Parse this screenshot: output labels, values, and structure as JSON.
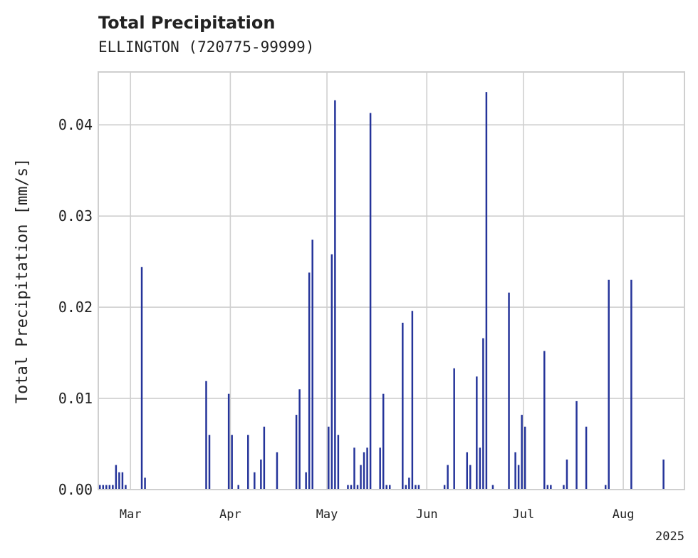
{
  "chart_data": {
    "type": "bar",
    "title": "Total Precipitation",
    "subtitle": "ELLINGTON (720775-99999)",
    "ylabel": "Total Precipitation [mm/s]",
    "xlabel": "",
    "x_range": [
      "2025-02-19",
      "2025-08-20"
    ],
    "ylim": [
      0,
      0.0458
    ],
    "y_ticks": [
      {
        "value": 0.0,
        "label": "0.00"
      },
      {
        "value": 0.01,
        "label": "0.01"
      },
      {
        "value": 0.02,
        "label": "0.02"
      },
      {
        "value": 0.03,
        "label": "0.03"
      },
      {
        "value": 0.04,
        "label": "0.04"
      }
    ],
    "x_ticks": [
      {
        "date": "2025-03-01",
        "label": "Mar"
      },
      {
        "date": "2025-04-01",
        "label": "Apr"
      },
      {
        "date": "2025-05-01",
        "label": "May"
      },
      {
        "date": "2025-06-01",
        "label": "Jun"
      },
      {
        "date": "2025-07-01",
        "label": "Jul"
      },
      {
        "date": "2025-08-01",
        "label": "Aug"
      }
    ],
    "x_offset_label": "2025",
    "grid": true,
    "color": "#25349a",
    "series": [
      {
        "x": [
          "2025-02-19",
          "2025-02-20",
          "2025-02-21",
          "2025-02-22",
          "2025-02-23",
          "2025-02-24",
          "2025-02-25",
          "2025-02-26",
          "2025-02-27",
          "2025-03-04",
          "2025-03-05",
          "2025-03-24",
          "2025-03-25",
          "2025-03-31",
          "2025-04-01",
          "2025-04-03",
          "2025-04-06",
          "2025-04-08",
          "2025-04-10",
          "2025-04-11",
          "2025-04-15",
          "2025-04-21",
          "2025-04-22",
          "2025-04-24",
          "2025-04-25",
          "2025-04-26",
          "2025-05-01",
          "2025-05-02",
          "2025-05-03",
          "2025-05-04",
          "2025-05-07",
          "2025-05-08",
          "2025-05-09",
          "2025-05-10",
          "2025-05-11",
          "2025-05-12",
          "2025-05-13",
          "2025-05-14",
          "2025-05-17",
          "2025-05-18",
          "2025-05-19",
          "2025-05-20",
          "2025-05-24",
          "2025-05-25",
          "2025-05-26",
          "2025-05-27",
          "2025-05-28",
          "2025-05-29",
          "2025-06-06",
          "2025-06-07",
          "2025-06-09",
          "2025-06-13",
          "2025-06-14",
          "2025-06-16",
          "2025-06-17",
          "2025-06-18",
          "2025-06-19",
          "2025-06-21",
          "2025-06-26",
          "2025-06-28",
          "2025-06-29",
          "2025-06-30",
          "2025-07-01",
          "2025-07-07",
          "2025-07-08",
          "2025-07-09",
          "2025-07-13",
          "2025-07-14",
          "2025-07-17",
          "2025-07-20",
          "2025-07-26",
          "2025-07-27",
          "2025-08-03",
          "2025-08-13"
        ],
        "y": [
          0.0005,
          0.0005,
          0.0005,
          0.0005,
          0.0005,
          0.0027,
          0.0019,
          0.0019,
          0.0005,
          0.0244,
          0.0013,
          0.0119,
          0.006,
          0.0105,
          0.006,
          0.0005,
          0.006,
          0.0019,
          0.0033,
          0.0069,
          0.0041,
          0.0082,
          0.011,
          0.0019,
          0.0238,
          0.0274,
          0.0069,
          0.0258,
          0.0427,
          0.006,
          0.0005,
          0.0005,
          0.0046,
          0.0005,
          0.0027,
          0.0041,
          0.0046,
          0.0413,
          0.0046,
          0.0105,
          0.0005,
          0.0005,
          0.0183,
          0.0005,
          0.0013,
          0.0196,
          0.0005,
          0.0005,
          0.0005,
          0.0027,
          0.0133,
          0.0041,
          0.0027,
          0.0124,
          0.0046,
          0.0166,
          0.0436,
          0.0005,
          0.0216,
          0.0041,
          0.0027,
          0.0082,
          0.0069,
          0.0152,
          0.0005,
          0.0005,
          0.0005,
          0.0033,
          0.0097,
          0.0069,
          0.0005,
          0.023,
          0.023,
          0.0033
        ]
      }
    ]
  }
}
